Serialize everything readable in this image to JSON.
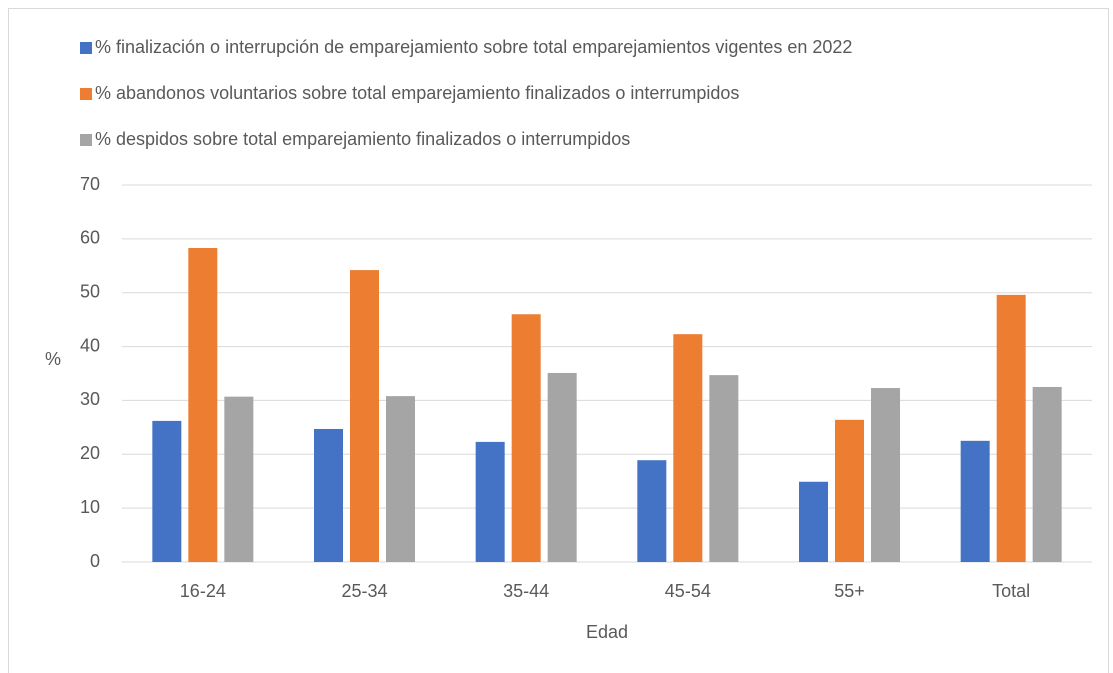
{
  "chart_data": {
    "type": "bar",
    "categories": [
      "16-24",
      "25-34",
      "35-44",
      "45-54",
      "55+",
      "Total"
    ],
    "series": [
      {
        "name": "% finalización o interrupción de emparejamiento sobre total emparejamientos vigentes en 2022",
        "color": "#4472c4",
        "values": [
          26.2,
          24.7,
          22.3,
          18.9,
          14.9,
          22.5
        ]
      },
      {
        "name": "% abandonos voluntarios sobre total emparejamiento finalizados o interrumpidos",
        "color": "#ed7d31",
        "values": [
          58.3,
          54.2,
          46.0,
          42.3,
          26.4,
          49.6
        ]
      },
      {
        "name": "% despidos sobre total emparejamiento finalizados o interrumpidos",
        "color": "#a5a5a5",
        "values": [
          30.7,
          30.8,
          35.1,
          34.7,
          32.3,
          32.5
        ]
      }
    ],
    "x_label": "Edad",
    "y_label": "%",
    "ylim": [
      0,
      70
    ],
    "yticks": [
      0,
      10,
      20,
      30,
      40,
      50,
      60,
      70
    ],
    "grid": true,
    "legend": "top"
  }
}
